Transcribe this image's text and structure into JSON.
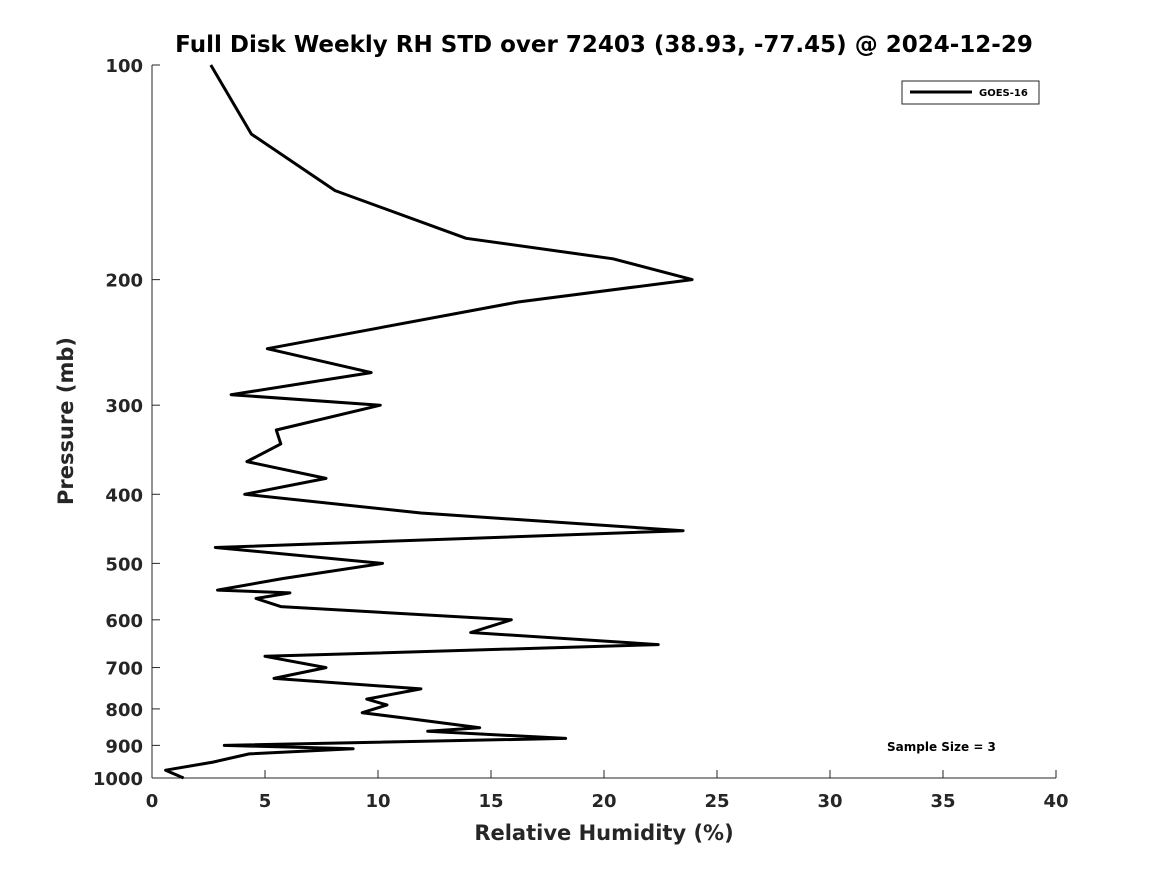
{
  "chart_data": {
    "type": "line",
    "title": "Full Disk Weekly RH STD over 72403 (38.93, -77.45) @ 2024-12-29",
    "xlabel": "Relative Humidity (%)",
    "ylabel": "Pressure (mb)",
    "xlim": [
      0,
      40
    ],
    "ylim": [
      100,
      1000
    ],
    "y_scale": "log",
    "y_direction": "reversed",
    "x_ticks": [
      0,
      5,
      10,
      15,
      20,
      25,
      30,
      35,
      40
    ],
    "y_ticks": [
      100,
      200,
      300,
      400,
      500,
      600,
      700,
      800,
      900,
      1000
    ],
    "grid": false,
    "legend": {
      "position": "top-right",
      "entries": [
        "GOES-16"
      ]
    },
    "annotation": "Sample Size = 3",
    "series": [
      {
        "name": "GOES-16",
        "color": "#000000",
        "points": [
          [
            2.6,
            100
          ],
          [
            4.4,
            125
          ],
          [
            8.1,
            150
          ],
          [
            13.9,
            175
          ],
          [
            20.4,
            187
          ],
          [
            23.9,
            200
          ],
          [
            16.2,
            215
          ],
          [
            5.1,
            250
          ],
          [
            9.7,
            270
          ],
          [
            3.5,
            290
          ],
          [
            10.1,
            300
          ],
          [
            5.5,
            325
          ],
          [
            5.7,
            340
          ],
          [
            4.2,
            360
          ],
          [
            7.7,
            380
          ],
          [
            4.1,
            400
          ],
          [
            11.9,
            425
          ],
          [
            23.5,
            450
          ],
          [
            2.8,
            475
          ],
          [
            10.2,
            500
          ],
          [
            5.8,
            525
          ],
          [
            2.9,
            545
          ],
          [
            6.1,
            550
          ],
          [
            4.6,
            560
          ],
          [
            5.7,
            575
          ],
          [
            15.9,
            600
          ],
          [
            14.1,
            625
          ],
          [
            22.4,
            650
          ],
          [
            5.0,
            675
          ],
          [
            7.7,
            700
          ],
          [
            5.4,
            725
          ],
          [
            11.9,
            750
          ],
          [
            9.5,
            775
          ],
          [
            10.4,
            790
          ],
          [
            9.3,
            810
          ],
          [
            11.3,
            825
          ],
          [
            14.5,
            850
          ],
          [
            12.2,
            860
          ],
          [
            18.3,
            880
          ],
          [
            3.2,
            900
          ],
          [
            8.9,
            910
          ],
          [
            4.3,
            925
          ],
          [
            2.7,
            950
          ],
          [
            0.6,
            975
          ],
          [
            1.4,
            1000
          ]
        ]
      }
    ]
  }
}
